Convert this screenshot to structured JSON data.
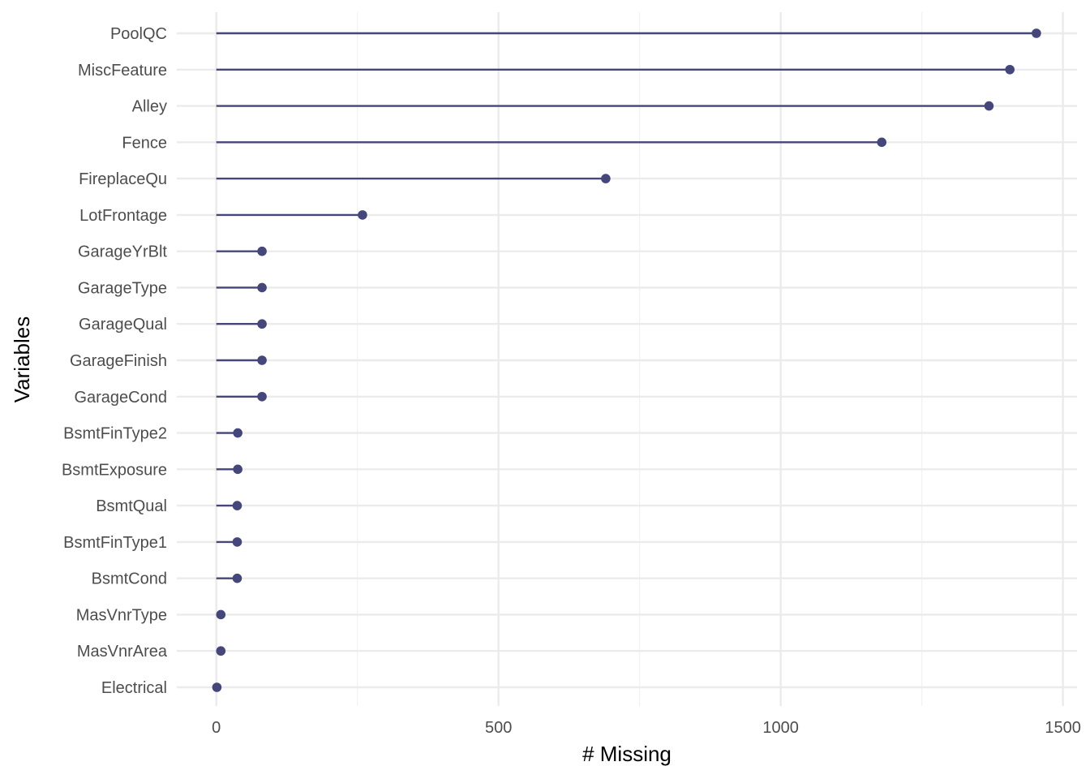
{
  "chart_data": {
    "type": "lollipop",
    "xlabel": "# Missing",
    "ylabel": "Variables",
    "xlim": [
      -70,
      1525
    ],
    "x_ticks": [
      0,
      500,
      1000,
      1500
    ],
    "x_minor_ticks": [
      250,
      750,
      1250
    ],
    "grid": true,
    "categories": [
      "PoolQC",
      "MiscFeature",
      "Alley",
      "Fence",
      "FireplaceQu",
      "LotFrontage",
      "GarageYrBlt",
      "GarageType",
      "GarageQual",
      "GarageFinish",
      "GarageCond",
      "BsmtFinType2",
      "BsmtExposure",
      "BsmtQual",
      "BsmtFinType1",
      "BsmtCond",
      "MasVnrType",
      "MasVnrArea",
      "Electrical"
    ],
    "values": [
      1453,
      1406,
      1369,
      1179,
      690,
      259,
      81,
      81,
      81,
      81,
      81,
      38,
      38,
      37,
      37,
      37,
      8,
      8,
      1
    ],
    "color": "#45467a"
  }
}
